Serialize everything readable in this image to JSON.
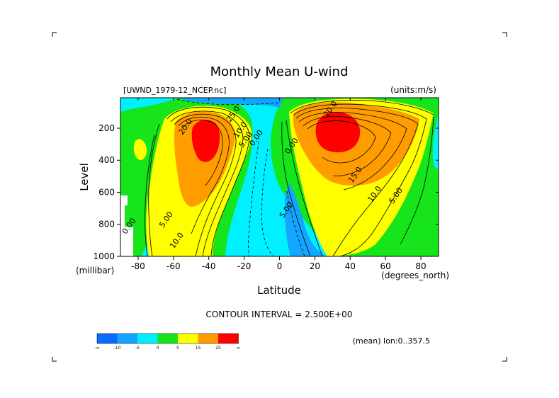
{
  "chart_data": {
    "type": "heatmap",
    "title": "Monthly Mean U-wind",
    "dataset_label": "[UWND_1979-12_NCEP.nc]",
    "units_label": "(units:m/s)",
    "xlabel": "Latitude",
    "x_units": "(degrees_north)",
    "ylabel": "Level",
    "y_units": "(millibar)",
    "xlim": [
      -90,
      90
    ],
    "ylim": [
      1000,
      10
    ],
    "x_ticks": [
      -80,
      -60,
      -40,
      -20,
      0,
      20,
      40,
      60,
      80
    ],
    "y_ticks": [
      200,
      400,
      600,
      800,
      1000
    ],
    "y_inverted": true,
    "contour_interval_text": "CONTOUR INTERVAL = 2.500E+00",
    "mean_text": "(mean) lon:0..357.5",
    "contour_labels": [
      {
        "text": "20.0",
        "lat": -52,
        "lev": 200
      },
      {
        "text": "25.0",
        "lat": -25,
        "lev": 120
      },
      {
        "text": "10.0",
        "lat": -21,
        "lev": 220
      },
      {
        "text": "5.00",
        "lat": -18,
        "lev": 280
      },
      {
        "text": "0.00",
        "lat": -12,
        "lev": 270
      },
      {
        "text": "0.00",
        "lat": 8,
        "lev": 320
      },
      {
        "text": "5.00",
        "lat": 5,
        "lev": 720
      },
      {
        "text": "0.00",
        "lat": -84,
        "lev": 820
      },
      {
        "text": "5.00",
        "lat": -63,
        "lev": 780
      },
      {
        "text": "10.0",
        "lat": -57,
        "lev": 910
      },
      {
        "text": "20.0",
        "lat": 30,
        "lev": 90
      },
      {
        "text": "15.0",
        "lat": 44,
        "lev": 500
      },
      {
        "text": "10.0",
        "lat": 55,
        "lev": 620
      },
      {
        "text": "5.00",
        "lat": 67,
        "lev": 630
      }
    ],
    "jets": [
      {
        "lat": -42,
        "lev": 230,
        "peak": 27
      },
      {
        "lat": 30,
        "lev": 200,
        "peak": 30
      }
    ],
    "colorbar": {
      "bins": [
        {
          "color": "#0a6cff",
          "label": "-∞"
        },
        {
          "color": "#13a5ff",
          "label": "-10"
        },
        {
          "color": "#00f0ff",
          "label": "-5"
        },
        {
          "color": "#15e51a",
          "label": "0"
        },
        {
          "color": "#ffff00",
          "label": "5"
        },
        {
          "color": "#ff9d00",
          "label": "15"
        },
        {
          "color": "#ff0000",
          "label": "25"
        }
      ],
      "end_label": "∞"
    },
    "grid": false,
    "legend_placement": "bottom-left"
  }
}
